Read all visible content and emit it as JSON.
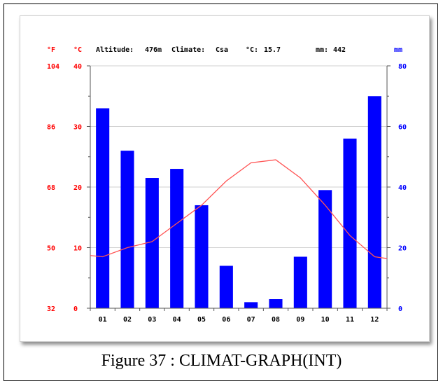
{
  "chart_data": {
    "type": "bar",
    "header": {
      "altitude_label": "Altitude:",
      "altitude_value": "476m",
      "climate_label": "Climate:",
      "climate_value": "Csa",
      "temp_label": "°C:",
      "temp_value": "15.7",
      "precip_label": "mm:",
      "precip_value": "442"
    },
    "units": {
      "fahrenheit": "°F",
      "celsius": "°C",
      "precip": "mm"
    },
    "categories": [
      "01",
      "02",
      "03",
      "04",
      "05",
      "06",
      "07",
      "08",
      "09",
      "10",
      "11",
      "12"
    ],
    "precipitation_mm": [
      66,
      52,
      43,
      46,
      34,
      14,
      2,
      3,
      17,
      39,
      56,
      70
    ],
    "temperature_c": [
      8.5,
      10.0,
      11.0,
      14.0,
      17.0,
      21.0,
      24.0,
      24.5,
      21.5,
      17.0,
      12.0,
      8.5
    ],
    "y_left_celsius": {
      "ticks": [
        0,
        10,
        20,
        30,
        40
      ],
      "ylim": [
        0,
        40
      ]
    },
    "y_left_fahrenheit": {
      "ticks": [
        32,
        50,
        68,
        86,
        104
      ]
    },
    "y_right_mm": {
      "ticks": [
        0,
        20,
        40,
        60,
        80
      ],
      "ylim": [
        0,
        80
      ]
    },
    "colors": {
      "bars": "#0000ff",
      "temp_line": "#ff5555",
      "temp_axis": "#ff0000",
      "precip_axis": "#0000ff",
      "grid": "#d0d0d0"
    },
    "grid": true
  },
  "caption": "Figure 37 : CLIMAT-GRAPH(INT)"
}
